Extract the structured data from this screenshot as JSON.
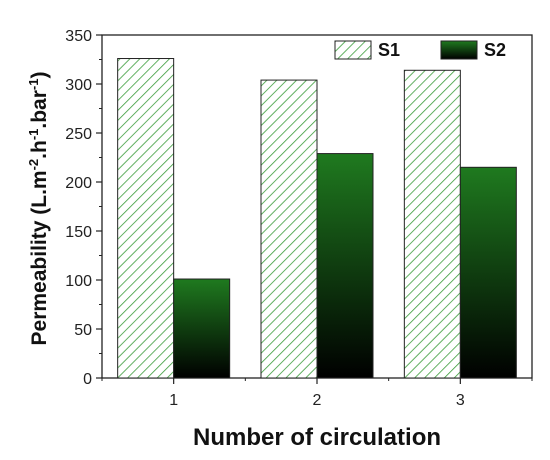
{
  "chart_data": {
    "type": "bar",
    "categories": [
      "1",
      "2",
      "3"
    ],
    "series": [
      {
        "name": "S1",
        "values": [
          326,
          304,
          314
        ],
        "pattern": "diagonal-hatch",
        "color": "#3a9c3a"
      },
      {
        "name": "S2",
        "values": [
          101,
          229,
          215
        ],
        "pattern": "vertical-gradient",
        "color_top": "#1f7a1f",
        "color_bottom": "#000000"
      }
    ],
    "xlabel": "Number of circulation",
    "ylabel_base": "Permeability (L.m",
    "ylabel_sup1": "-2",
    "ylabel_mid1": ".h",
    "ylabel_sup2": "-1",
    "ylabel_mid2": ".bar",
    "ylabel_sup3": "-1",
    "ylabel_end": ")",
    "ylim": [
      0,
      350
    ],
    "yticks": [
      0,
      50,
      100,
      150,
      200,
      250,
      300,
      350
    ],
    "grid": false,
    "legend_position": "top-right"
  }
}
